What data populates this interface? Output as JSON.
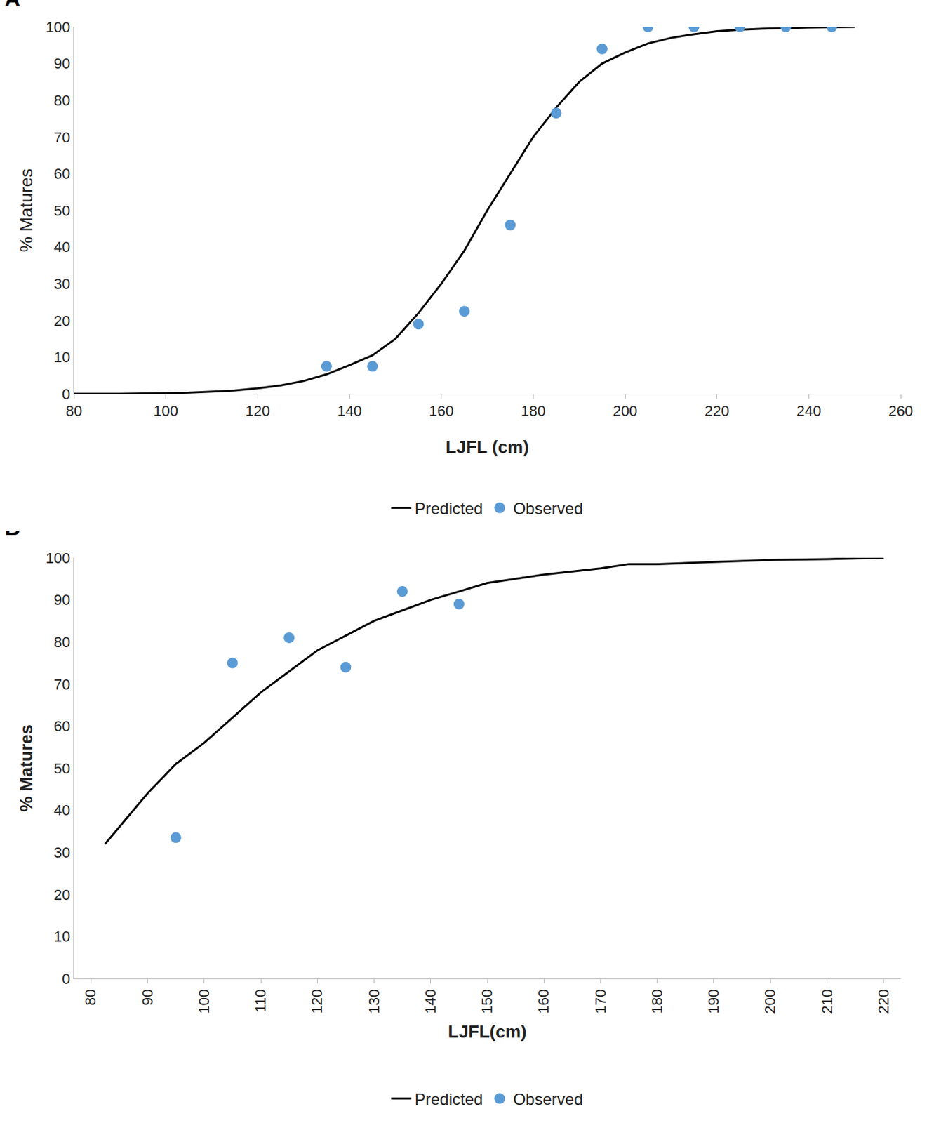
{
  "chart_data": [
    {
      "type": "line",
      "title": "A",
      "x_label": "LJFL (cm)",
      "y_label": "% Matures",
      "xlim": [
        80,
        260
      ],
      "xticks": [
        80,
        100,
        120,
        140,
        160,
        180,
        200,
        220,
        240,
        260
      ],
      "ylim": [
        0,
        100
      ],
      "yticks": [
        0,
        10,
        20,
        30,
        40,
        50,
        60,
        70,
        80,
        90,
        100
      ],
      "grid": false,
      "legend": "bottom",
      "series": [
        {
          "name": "Predicted",
          "type": "line",
          "line_style": "solid",
          "color": "#000000",
          "x": [
            80,
            90,
            100,
            105,
            110,
            115,
            120,
            125,
            130,
            135,
            140,
            145,
            150,
            155,
            160,
            165,
            170,
            175,
            180,
            185,
            190,
            195,
            200,
            205,
            210,
            215,
            220,
            225,
            230,
            240,
            250
          ],
          "values": [
            0,
            0,
            0.2,
            0.3,
            0.6,
            0.9,
            1.5,
            2.3,
            3.5,
            5.3,
            7.8,
            10.5,
            15,
            22,
            30,
            39,
            50,
            60,
            70,
            78,
            85,
            90,
            93,
            95.5,
            97,
            98,
            98.8,
            99.2,
            99.5,
            99.8,
            100
          ]
        },
        {
          "name": "Observed",
          "type": "scatter",
          "marker": "circle",
          "color": "#5b9bd5",
          "x": [
            135,
            145,
            155,
            165,
            175,
            185,
            195,
            205,
            215,
            225,
            235,
            245
          ],
          "values": [
            7.5,
            7.5,
            19,
            22.5,
            46,
            76.5,
            94,
            100,
            100,
            100,
            100,
            100
          ]
        }
      ]
    },
    {
      "type": "line",
      "title": "B",
      "x_label": "LJFL(cm)",
      "y_label": "% Matures",
      "xlim": [
        77,
        223
      ],
      "xticks": [
        80,
        90,
        100,
        110,
        120,
        130,
        140,
        150,
        160,
        170,
        180,
        190,
        200,
        210,
        220
      ],
      "ylim": [
        0,
        100
      ],
      "yticks": [
        0,
        10,
        20,
        30,
        40,
        50,
        60,
        70,
        80,
        90,
        100
      ],
      "grid": false,
      "legend": "bottom",
      "series": [
        {
          "name": "Predicted",
          "type": "line",
          "line_style": "solid",
          "color": "#000000",
          "x": [
            82.5,
            90,
            95,
            100,
            105,
            110,
            115,
            120,
            125,
            130,
            135,
            140,
            145,
            150,
            160,
            170,
            175,
            180,
            190,
            200,
            210,
            220
          ],
          "values": [
            32,
            44,
            51,
            56,
            62,
            68,
            73,
            78,
            81.5,
            85,
            87.5,
            90,
            92,
            94,
            96,
            97.5,
            98.5,
            98.5,
            99,
            99.5,
            99.7,
            100
          ]
        },
        {
          "name": "Observed",
          "type": "scatter",
          "marker": "circle",
          "color": "#5b9bd5",
          "x": [
            95,
            105,
            115,
            125,
            135,
            145
          ],
          "values": [
            33.5,
            75,
            81,
            74,
            92,
            89
          ]
        }
      ]
    }
  ]
}
